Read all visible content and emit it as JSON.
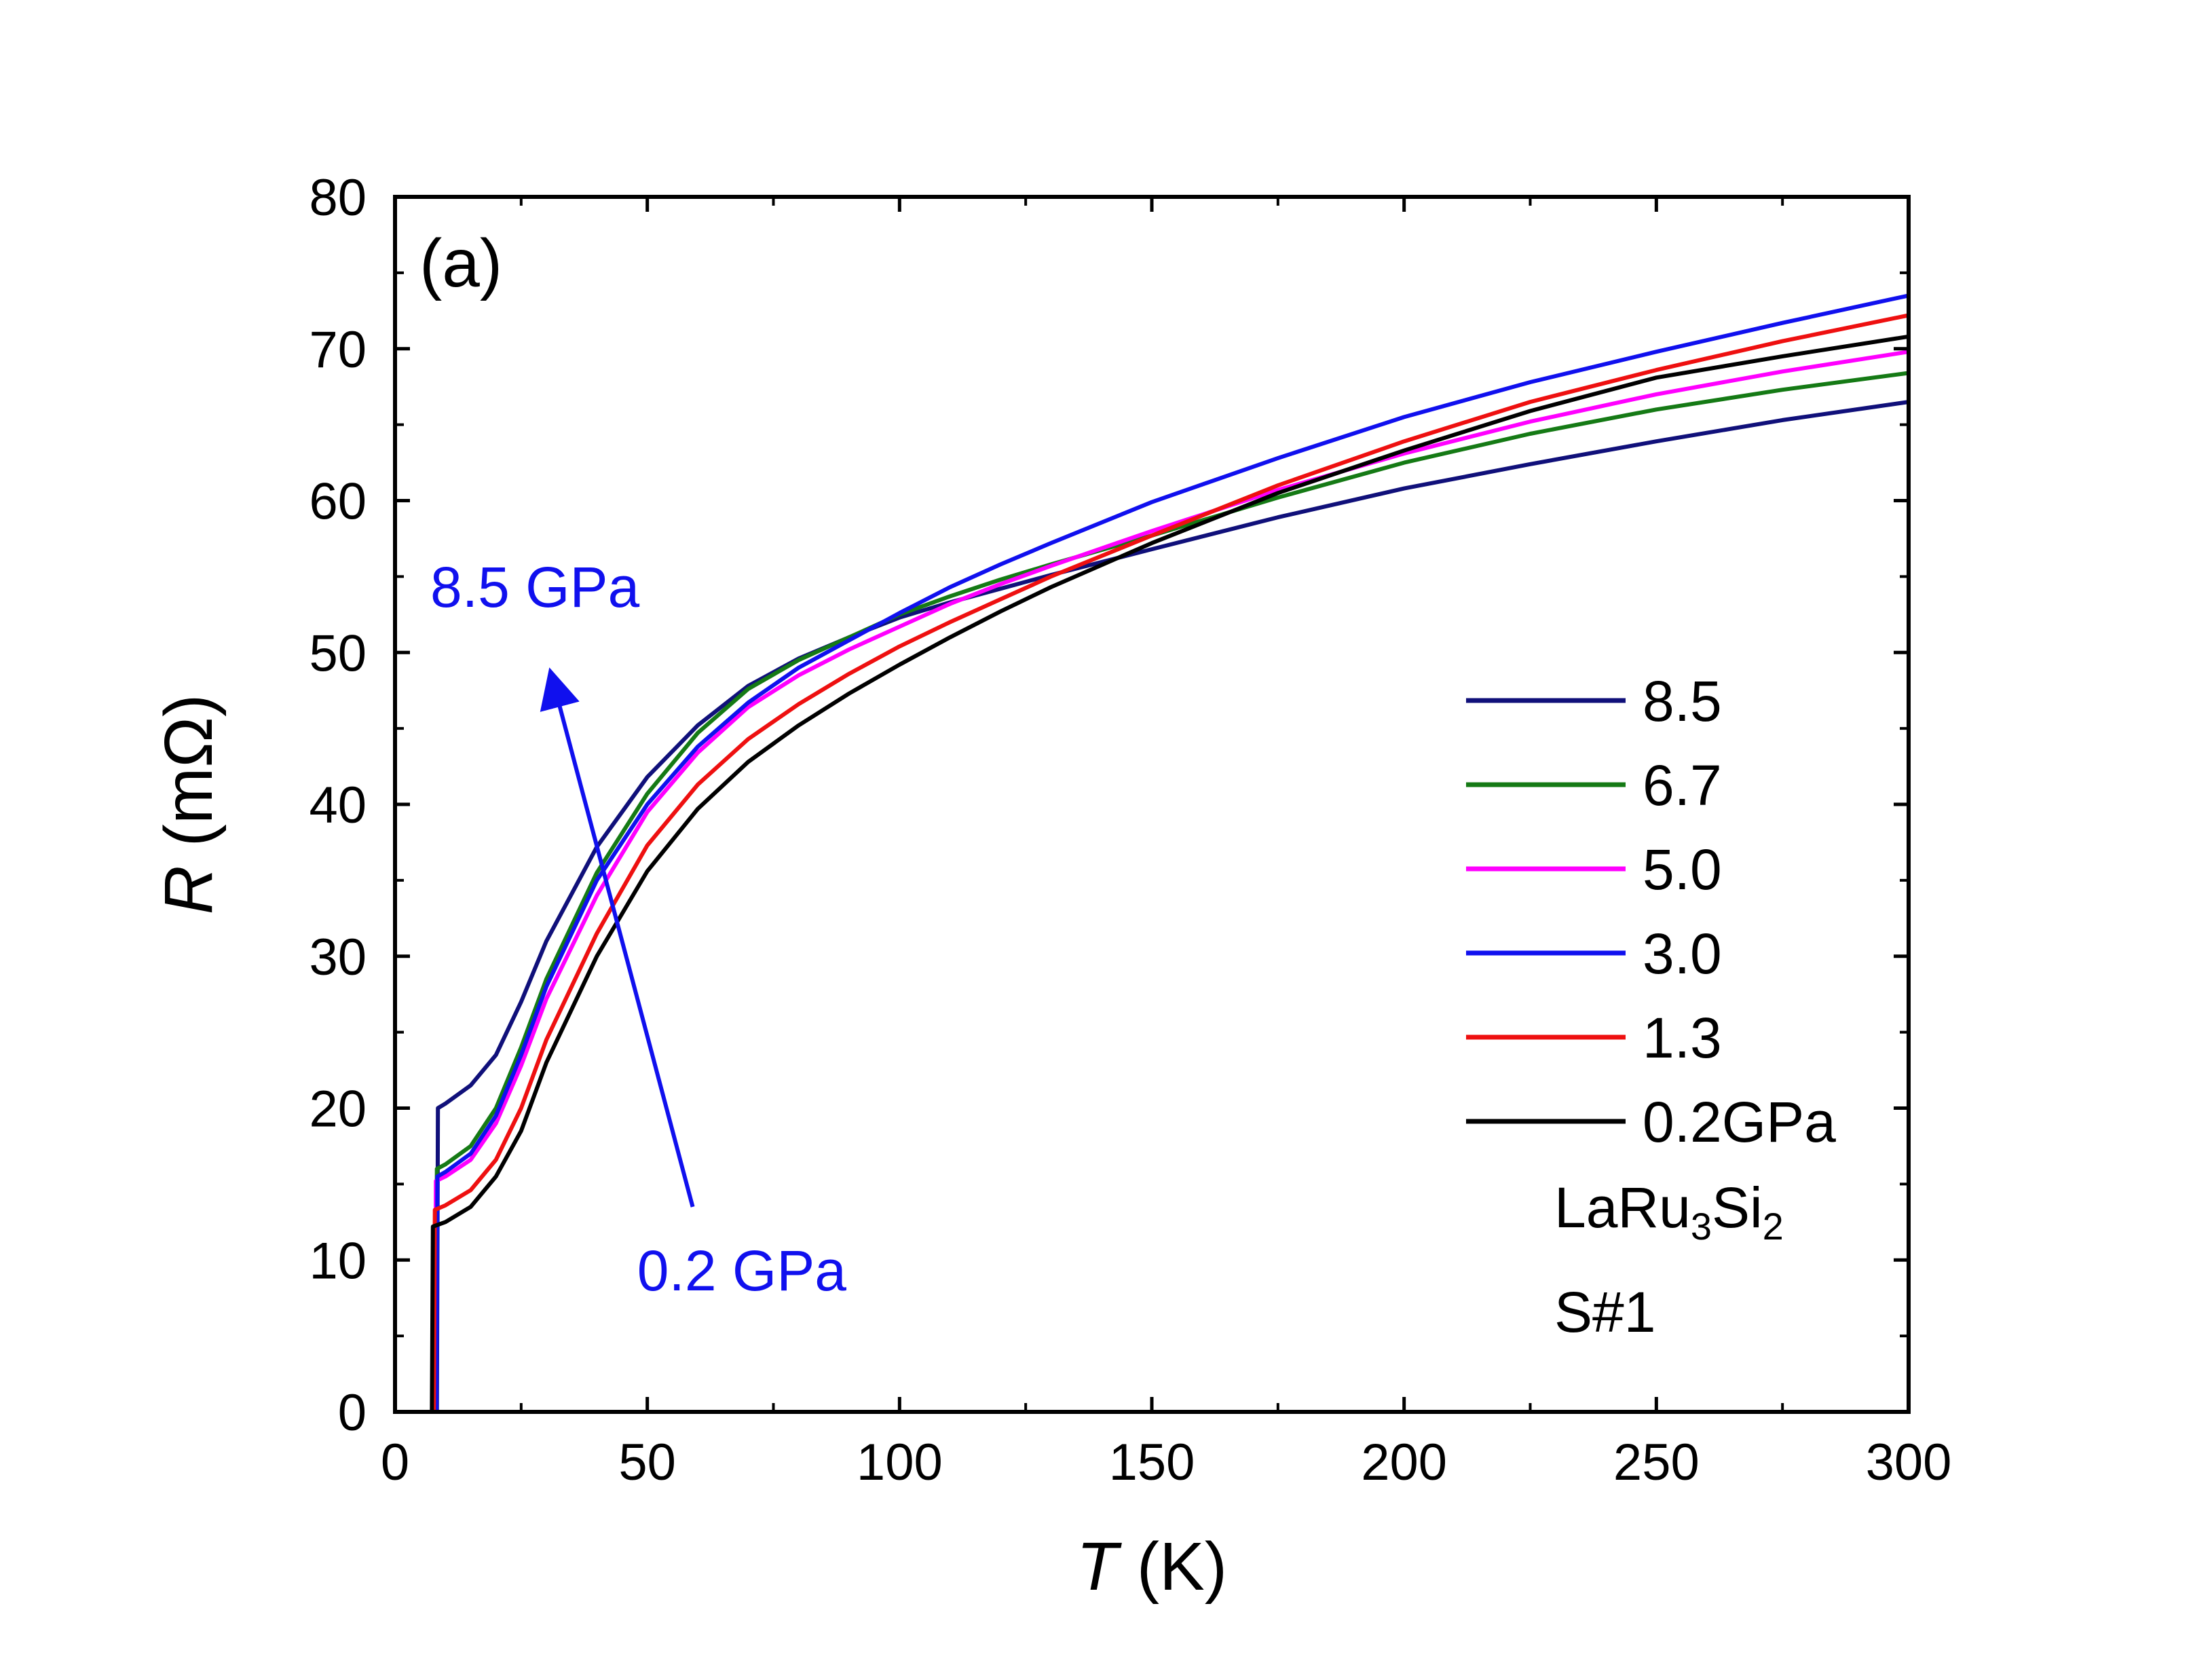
{
  "chart_data": {
    "type": "line",
    "panel_label": "(a)",
    "xlabel_symbol": "T",
    "xlabel_unit": " (K)",
    "ylabel_symbol": "R",
    "ylabel_unit": " (mΩ)",
    "xlim": [
      0,
      300
    ],
    "ylim": [
      0,
      80
    ],
    "xticks": [
      0,
      50,
      100,
      150,
      200,
      250,
      300
    ],
    "yticks": [
      0,
      10,
      20,
      30,
      40,
      50,
      60,
      70,
      80
    ],
    "legend_position": "right",
    "annotations": {
      "high": "8.5 GPa",
      "low": "0.2 GPa",
      "arrow_color": "#1010ee",
      "arrow_from": [
        59,
        13.5
      ],
      "arrow_to": [
        31,
        48.5
      ],
      "high_pos": [
        7,
        53
      ],
      "low_pos": [
        48,
        8
      ]
    },
    "sample": {
      "prefix": "LaRu",
      "sub1": "3",
      "mid": "Si",
      "sub2": "2",
      "id": "S#1"
    },
    "series": [
      {
        "name": "8.5",
        "color": "#10107a",
        "x": [
          8.3,
          8.5,
          10,
          15,
          20,
          25,
          30,
          40,
          50,
          60,
          70,
          80,
          90,
          100,
          110,
          120,
          130,
          150,
          175,
          200,
          225,
          250,
          275,
          300
        ],
        "y": [
          0,
          20,
          20.3,
          21.5,
          23.5,
          27,
          31,
          37.2,
          41.8,
          45.2,
          47.8,
          49.6,
          51,
          52.3,
          53.3,
          54.2,
          55.1,
          56.8,
          58.9,
          60.8,
          62.4,
          63.9,
          65.3,
          66.5
        ]
      },
      {
        "name": "6.7",
        "color": "#157a15",
        "x": [
          8.1,
          8.3,
          10,
          15,
          20,
          25,
          30,
          40,
          50,
          60,
          70,
          80,
          90,
          100,
          110,
          120,
          130,
          150,
          175,
          200,
          225,
          250,
          275,
          300
        ],
        "y": [
          0,
          16,
          16.3,
          17.5,
          20,
          24,
          28.5,
          35.5,
          40.7,
          44.7,
          47.6,
          49.5,
          51,
          52.5,
          53.7,
          54.8,
          55.8,
          57.7,
          60.2,
          62.5,
          64.4,
          66,
          67.3,
          68.4
        ]
      },
      {
        "name": "5.0",
        "color": "#ff00ff",
        "x": [
          7.9,
          8.1,
          10,
          15,
          20,
          25,
          30,
          40,
          50,
          60,
          70,
          80,
          90,
          100,
          110,
          120,
          130,
          150,
          175,
          200,
          225,
          250,
          275,
          300
        ],
        "y": [
          0,
          15.2,
          15.5,
          16.6,
          19,
          22.8,
          27.2,
          34,
          39.5,
          43.4,
          46.4,
          48.5,
          50.2,
          51.7,
          53.2,
          54.5,
          55.7,
          58,
          60.7,
          63.1,
          65.2,
          67,
          68.5,
          69.8
        ]
      },
      {
        "name": "3.0",
        "color": "#1010ee",
        "x": [
          8.2,
          8.4,
          10,
          15,
          20,
          25,
          30,
          40,
          50,
          60,
          70,
          80,
          90,
          100,
          110,
          120,
          130,
          150,
          175,
          200,
          225,
          250,
          275,
          300
        ],
        "y": [
          0,
          15.5,
          15.8,
          17,
          19.5,
          23.5,
          28,
          35,
          40,
          43.8,
          46.7,
          49,
          50.8,
          52.6,
          54.3,
          55.8,
          57.2,
          59.9,
          62.8,
          65.5,
          67.8,
          69.8,
          71.7,
          73.5
        ]
      },
      {
        "name": "1.3",
        "color": "#ee1010",
        "x": [
          7.7,
          7.9,
          10,
          15,
          20,
          25,
          30,
          40,
          50,
          60,
          70,
          80,
          90,
          100,
          110,
          120,
          130,
          150,
          175,
          200,
          225,
          250,
          275,
          300
        ],
        "y": [
          0,
          13.3,
          13.6,
          14.6,
          16.6,
          20,
          24.5,
          31.5,
          37.3,
          41.3,
          44.3,
          46.6,
          48.6,
          50.4,
          52,
          53.5,
          55,
          57.7,
          61,
          63.9,
          66.5,
          68.6,
          70.5,
          72.2
        ]
      },
      {
        "name": "0.2GPa",
        "color": "#000000",
        "x": [
          7.3,
          7.5,
          10,
          15,
          20,
          25,
          30,
          40,
          50,
          60,
          70,
          80,
          90,
          100,
          110,
          120,
          130,
          150,
          175,
          200,
          225,
          250,
          275,
          300
        ],
        "y": [
          0,
          12.2,
          12.5,
          13.5,
          15.5,
          18.5,
          23,
          30,
          35.6,
          39.7,
          42.8,
          45.2,
          47.3,
          49.2,
          51,
          52.7,
          54.3,
          57.2,
          60.5,
          63.3,
          65.9,
          68.1,
          69.5,
          70.8
        ]
      }
    ]
  }
}
